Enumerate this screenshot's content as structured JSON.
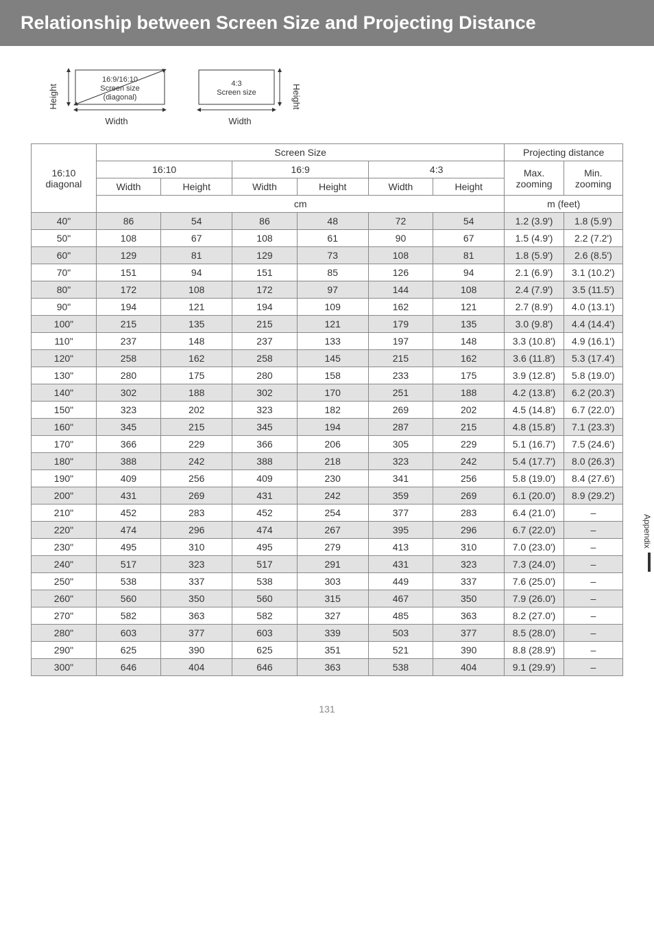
{
  "title": "Relationship between Screen Size and Projecting Distance",
  "diagrams": {
    "left": {
      "height_label": "Height",
      "width_label": "Width",
      "inner_text_l1": "16:9/16:10",
      "inner_text_l2": "Screen size",
      "inner_text_l3": "(diagonal)"
    },
    "right": {
      "height_label": "Height",
      "width_label": "Width",
      "inner_text_l1": "4:3",
      "inner_text_l2": "Screen size"
    }
  },
  "table": {
    "header": {
      "screen_size": "Screen Size",
      "projecting_distance": "Projecting distance",
      "diag_label_l1": "16:10",
      "diag_label_l2": "diagonal",
      "ratio_1610": "16:10",
      "ratio_169": "16:9",
      "ratio_43": "4:3",
      "max_zoom": "Max.",
      "min_zoom": "Min.",
      "zooming": "zooming",
      "width": "Width",
      "height": "Height",
      "unit_cm": "cm",
      "unit_mft": "m (feet)"
    },
    "rows": [
      {
        "d": "40\"",
        "w1": "86",
        "h1": "54",
        "w2": "86",
        "h2": "48",
        "w3": "72",
        "h3": "54",
        "max": "1.2 (3.9')",
        "min": "1.8 (5.9')"
      },
      {
        "d": "50\"",
        "w1": "108",
        "h1": "67",
        "w2": "108",
        "h2": "61",
        "w3": "90",
        "h3": "67",
        "max": "1.5 (4.9')",
        "min": "2.2 (7.2')"
      },
      {
        "d": "60\"",
        "w1": "129",
        "h1": "81",
        "w2": "129",
        "h2": "73",
        "w3": "108",
        "h3": "81",
        "max": "1.8 (5.9')",
        "min": "2.6 (8.5')"
      },
      {
        "d": "70\"",
        "w1": "151",
        "h1": "94",
        "w2": "151",
        "h2": "85",
        "w3": "126",
        "h3": "94",
        "max": "2.1 (6.9')",
        "min": "3.1 (10.2')"
      },
      {
        "d": "80\"",
        "w1": "172",
        "h1": "108",
        "w2": "172",
        "h2": "97",
        "w3": "144",
        "h3": "108",
        "max": "2.4 (7.9')",
        "min": "3.5 (11.5')"
      },
      {
        "d": "90\"",
        "w1": "194",
        "h1": "121",
        "w2": "194",
        "h2": "109",
        "w3": "162",
        "h3": "121",
        "max": "2.7 (8.9')",
        "min": "4.0 (13.1')"
      },
      {
        "d": "100\"",
        "w1": "215",
        "h1": "135",
        "w2": "215",
        "h2": "121",
        "w3": "179",
        "h3": "135",
        "max": "3.0 (9.8')",
        "min": "4.4 (14.4')"
      },
      {
        "d": "110\"",
        "w1": "237",
        "h1": "148",
        "w2": "237",
        "h2": "133",
        "w3": "197",
        "h3": "148",
        "max": "3.3 (10.8')",
        "min": "4.9 (16.1')"
      },
      {
        "d": "120\"",
        "w1": "258",
        "h1": "162",
        "w2": "258",
        "h2": "145",
        "w3": "215",
        "h3": "162",
        "max": "3.6 (11.8')",
        "min": "5.3 (17.4')"
      },
      {
        "d": "130\"",
        "w1": "280",
        "h1": "175",
        "w2": "280",
        "h2": "158",
        "w3": "233",
        "h3": "175",
        "max": "3.9 (12.8')",
        "min": "5.8 (19.0')"
      },
      {
        "d": "140\"",
        "w1": "302",
        "h1": "188",
        "w2": "302",
        "h2": "170",
        "w3": "251",
        "h3": "188",
        "max": "4.2 (13.8')",
        "min": "6.2 (20.3')"
      },
      {
        "d": "150\"",
        "w1": "323",
        "h1": "202",
        "w2": "323",
        "h2": "182",
        "w3": "269",
        "h3": "202",
        "max": "4.5 (14.8')",
        "min": "6.7 (22.0')"
      },
      {
        "d": "160\"",
        "w1": "345",
        "h1": "215",
        "w2": "345",
        "h2": "194",
        "w3": "287",
        "h3": "215",
        "max": "4.8 (15.8')",
        "min": "7.1 (23.3')"
      },
      {
        "d": "170\"",
        "w1": "366",
        "h1": "229",
        "w2": "366",
        "h2": "206",
        "w3": "305",
        "h3": "229",
        "max": "5.1 (16.7')",
        "min": "7.5 (24.6')"
      },
      {
        "d": "180\"",
        "w1": "388",
        "h1": "242",
        "w2": "388",
        "h2": "218",
        "w3": "323",
        "h3": "242",
        "max": "5.4 (17.7')",
        "min": "8.0 (26.3')"
      },
      {
        "d": "190\"",
        "w1": "409",
        "h1": "256",
        "w2": "409",
        "h2": "230",
        "w3": "341",
        "h3": "256",
        "max": "5.8 (19.0')",
        "min": "8.4 (27.6')"
      },
      {
        "d": "200\"",
        "w1": "431",
        "h1": "269",
        "w2": "431",
        "h2": "242",
        "w3": "359",
        "h3": "269",
        "max": "6.1 (20.0')",
        "min": "8.9 (29.2')"
      },
      {
        "d": "210\"",
        "w1": "452",
        "h1": "283",
        "w2": "452",
        "h2": "254",
        "w3": "377",
        "h3": "283",
        "max": "6.4 (21.0')",
        "min": "–"
      },
      {
        "d": "220\"",
        "w1": "474",
        "h1": "296",
        "w2": "474",
        "h2": "267",
        "w3": "395",
        "h3": "296",
        "max": "6.7 (22.0')",
        "min": "–"
      },
      {
        "d": "230\"",
        "w1": "495",
        "h1": "310",
        "w2": "495",
        "h2": "279",
        "w3": "413",
        "h3": "310",
        "max": "7.0 (23.0')",
        "min": "–"
      },
      {
        "d": "240\"",
        "w1": "517",
        "h1": "323",
        "w2": "517",
        "h2": "291",
        "w3": "431",
        "h3": "323",
        "max": "7.3 (24.0')",
        "min": "–"
      },
      {
        "d": "250\"",
        "w1": "538",
        "h1": "337",
        "w2": "538",
        "h2": "303",
        "w3": "449",
        "h3": "337",
        "max": "7.6 (25.0')",
        "min": "–"
      },
      {
        "d": "260\"",
        "w1": "560",
        "h1": "350",
        "w2": "560",
        "h2": "315",
        "w3": "467",
        "h3": "350",
        "max": "7.9 (26.0')",
        "min": "–"
      },
      {
        "d": "270\"",
        "w1": "582",
        "h1": "363",
        "w2": "582",
        "h2": "327",
        "w3": "485",
        "h3": "363",
        "max": "8.2 (27.0')",
        "min": "–"
      },
      {
        "d": "280\"",
        "w1": "603",
        "h1": "377",
        "w2": "603",
        "h2": "339",
        "w3": "503",
        "h3": "377",
        "max": "8.5 (28.0')",
        "min": "–"
      },
      {
        "d": "290\"",
        "w1": "625",
        "h1": "390",
        "w2": "625",
        "h2": "351",
        "w3": "521",
        "h3": "390",
        "max": "8.8 (28.9')",
        "min": "–"
      },
      {
        "d": "300\"",
        "w1": "646",
        "h1": "404",
        "w2": "646",
        "h2": "363",
        "w3": "538",
        "h3": "404",
        "max": "9.1 (29.9')",
        "min": "–"
      }
    ]
  },
  "side_tab": "Appendix",
  "page_number": "131",
  "colors": {
    "band_bg": "#808080",
    "shade_bg": "#e2e2e2",
    "border": "#888888",
    "page_num": "#888888"
  }
}
